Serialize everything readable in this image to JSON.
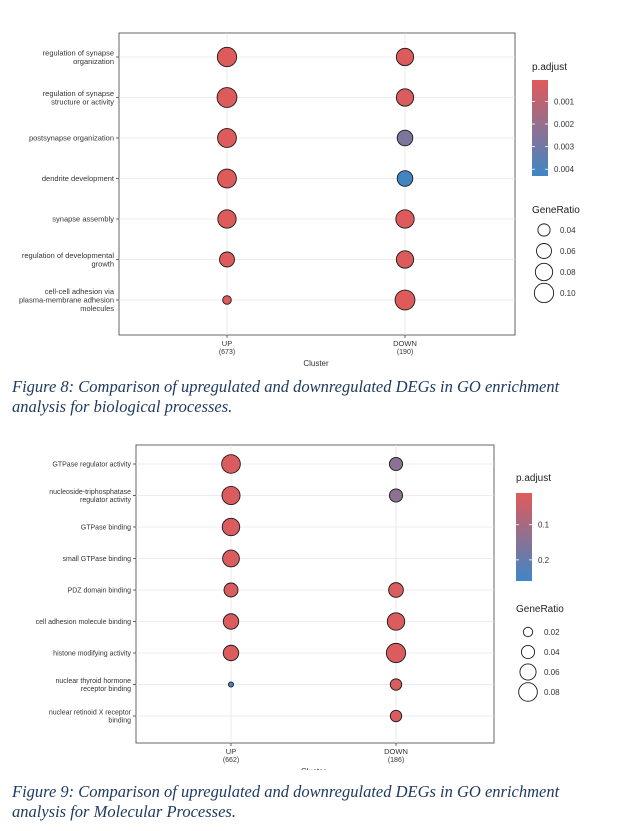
{
  "chart_data": [
    {
      "type": "scatter",
      "title": "",
      "xlabel": "Cluster",
      "ylabel": "",
      "categories": [
        "UP",
        "DOWN"
      ],
      "category_counts": [
        "(673)",
        "(190)"
      ],
      "terms": [
        "regulation of synapse\norganization",
        "regulation of synapse\nstructure or activity",
        "postsynapse organization",
        "dendrite development",
        "synapse assembly",
        "regulation of developmental\ngrowth",
        "cell-cell adhesion via\nplasma-membrane adhesion\nmolecules"
      ],
      "points": [
        {
          "term_index": 0,
          "cluster": "UP",
          "gene_ratio": 0.1,
          "p_adjust": 0.0001
        },
        {
          "term_index": 0,
          "cluster": "DOWN",
          "gene_ratio": 0.08,
          "p_adjust": 0.0001
        },
        {
          "term_index": 1,
          "cluster": "UP",
          "gene_ratio": 0.105,
          "p_adjust": 0.0001
        },
        {
          "term_index": 1,
          "cluster": "DOWN",
          "gene_ratio": 0.08,
          "p_adjust": 0.0002
        },
        {
          "term_index": 2,
          "cluster": "UP",
          "gene_ratio": 0.095,
          "p_adjust": 0.0001
        },
        {
          "term_index": 2,
          "cluster": "DOWN",
          "gene_ratio": 0.065,
          "p_adjust": 0.0027
        },
        {
          "term_index": 3,
          "cluster": "UP",
          "gene_ratio": 0.095,
          "p_adjust": 0.0001
        },
        {
          "term_index": 3,
          "cluster": "DOWN",
          "gene_ratio": 0.065,
          "p_adjust": 0.0042
        },
        {
          "term_index": 4,
          "cluster": "UP",
          "gene_ratio": 0.09,
          "p_adjust": 0.0001
        },
        {
          "term_index": 4,
          "cluster": "DOWN",
          "gene_ratio": 0.09,
          "p_adjust": 0.0001
        },
        {
          "term_index": 5,
          "cluster": "UP",
          "gene_ratio": 0.06,
          "p_adjust": 0.0001
        },
        {
          "term_index": 5,
          "cluster": "DOWN",
          "gene_ratio": 0.08,
          "p_adjust": 0.0001
        },
        {
          "term_index": 6,
          "cluster": "UP",
          "gene_ratio": 0.02,
          "p_adjust": 0.0001
        },
        {
          "term_index": 6,
          "cluster": "DOWN",
          "gene_ratio": 0.105,
          "p_adjust": 0.0001
        }
      ],
      "legend_color": {
        "title": "p.adjust",
        "ticks": [
          "0.001",
          "0.002",
          "0.003",
          "0.004"
        ],
        "tick_values": [
          0.001,
          0.002,
          0.003,
          0.004
        ],
        "range": [
          5e-05,
          0.0043
        ]
      },
      "legend_size": {
        "title": "GeneRatio",
        "ticks": [
          "0.04",
          "0.06",
          "0.08",
          "0.10"
        ],
        "tick_values": [
          0.04,
          0.06,
          0.08,
          0.1
        ]
      },
      "color_low": "#e05a5a",
      "color_high": "#3f86c6",
      "grid": true,
      "legend_position": "right"
    },
    {
      "type": "scatter",
      "title": "",
      "xlabel": "Cluster",
      "ylabel": "",
      "categories": [
        "UP",
        "DOWN"
      ],
      "category_counts": [
        "(662)",
        "(186)"
      ],
      "terms": [
        "GTPase regulator activity",
        "nucleoside-triphosphatase\nregulator activity",
        "GTPase binding",
        "small GTPase binding",
        "PDZ domain binding",
        "cell adhesion molecule binding",
        "histone modifying activity",
        "nuclear thyroid hormone\nreceptor binding",
        "nuclear retinoid X receptor\nbinding"
      ],
      "points": [
        {
          "term_index": 0,
          "cluster": "UP",
          "gene_ratio": 0.08,
          "p_adjust": 0.02
        },
        {
          "term_index": 0,
          "cluster": "DOWN",
          "gene_ratio": 0.04,
          "p_adjust": 0.14
        },
        {
          "term_index": 1,
          "cluster": "UP",
          "gene_ratio": 0.075,
          "p_adjust": 0.02
        },
        {
          "term_index": 1,
          "cluster": "DOWN",
          "gene_ratio": 0.04,
          "p_adjust": 0.14
        },
        {
          "term_index": 2,
          "cluster": "UP",
          "gene_ratio": 0.07,
          "p_adjust": 0.02
        },
        {
          "term_index": 3,
          "cluster": "UP",
          "gene_ratio": 0.065,
          "p_adjust": 0.02
        },
        {
          "term_index": 4,
          "cluster": "UP",
          "gene_ratio": 0.045,
          "p_adjust": 0.02
        },
        {
          "term_index": 4,
          "cluster": "DOWN",
          "gene_ratio": 0.05,
          "p_adjust": 0.02
        },
        {
          "term_index": 5,
          "cluster": "UP",
          "gene_ratio": 0.055,
          "p_adjust": 0.02
        },
        {
          "term_index": 5,
          "cluster": "DOWN",
          "gene_ratio": 0.07,
          "p_adjust": 0.02
        },
        {
          "term_index": 6,
          "cluster": "UP",
          "gene_ratio": 0.055,
          "p_adjust": 0.02
        },
        {
          "term_index": 6,
          "cluster": "DOWN",
          "gene_ratio": 0.085,
          "p_adjust": 0.02
        },
        {
          "term_index": 7,
          "cluster": "UP",
          "gene_ratio": 0.006,
          "p_adjust": 0.25
        },
        {
          "term_index": 7,
          "cluster": "DOWN",
          "gene_ratio": 0.03,
          "p_adjust": 0.02
        },
        {
          "term_index": 8,
          "cluster": "DOWN",
          "gene_ratio": 0.03,
          "p_adjust": 0.02
        }
      ],
      "legend_color": {
        "title": "p.adjust",
        "ticks": [
          "0.1",
          "0.2"
        ],
        "tick_values": [
          0.1,
          0.2
        ],
        "range": [
          0.01,
          0.26
        ]
      },
      "legend_size": {
        "title": "GeneRatio",
        "ticks": [
          "0.02",
          "0.04",
          "0.06",
          "0.08"
        ],
        "tick_values": [
          0.02,
          0.04,
          0.06,
          0.08
        ]
      },
      "color_low": "#e05a5a",
      "color_high": "#3f86c6",
      "grid": true,
      "legend_position": "right"
    }
  ],
  "captions": [
    "Figure 8: Comparison of upregulated and downregulated DEGs in GO enrichment analysis for biological processes.",
    "Figure 9: Comparison of upregulated and downregulated DEGs in GO enrichment analysis for Molecular Processes."
  ]
}
